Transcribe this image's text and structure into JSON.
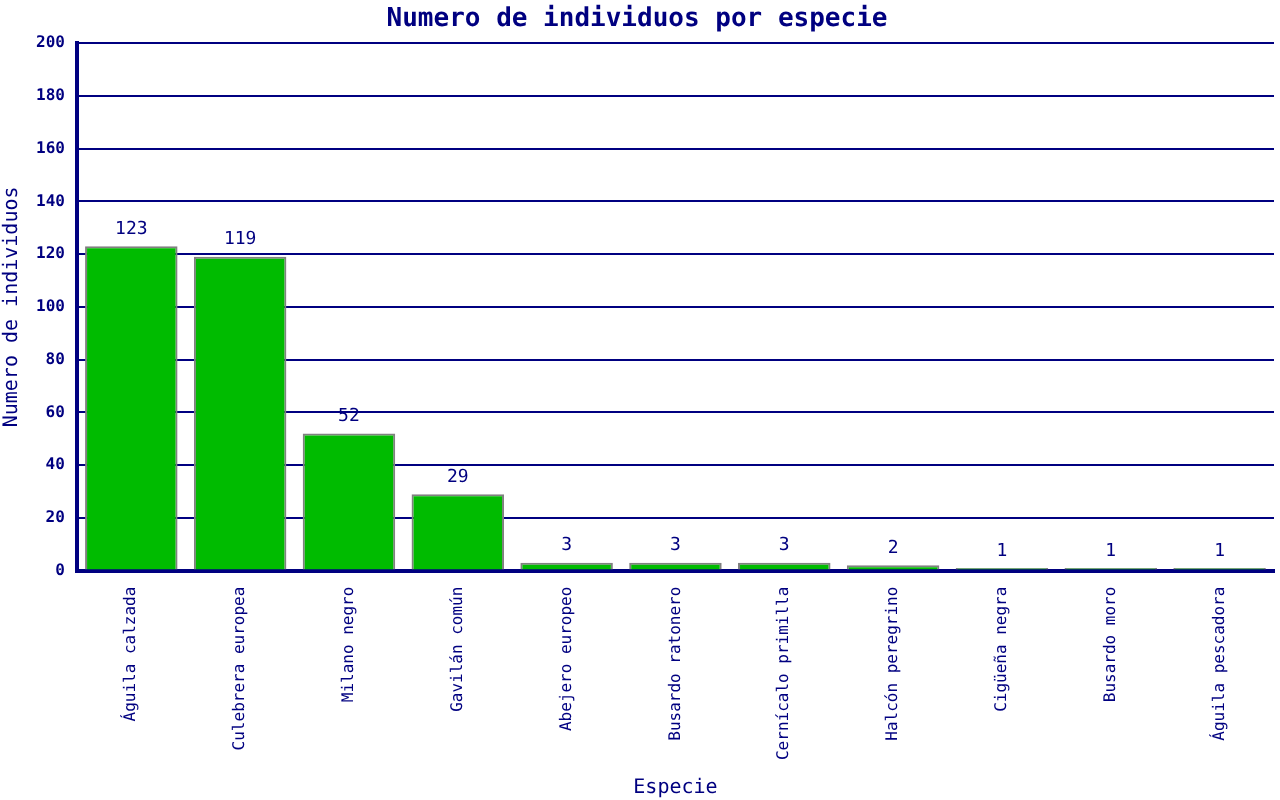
{
  "chart_data": {
    "type": "bar",
    "title": "Numero de individuos por especie",
    "xlabel": "Especie",
    "ylabel": "Numero de individuos",
    "categories": [
      "Águila calzada",
      "Culebrera europea",
      "Milano negro",
      "Gavilán común",
      "Abejero europeo",
      "Busardo ratonero",
      "Cernícalo primilla",
      "Halcón peregrino",
      "Cigüeña negra",
      "Busardo moro",
      "Águila pescadora"
    ],
    "values": [
      123,
      119,
      52,
      29,
      3,
      3,
      3,
      2,
      1,
      1,
      1
    ],
    "color": "#00bb00",
    "ylim": [
      0,
      200
    ],
    "yticks": [
      0,
      20,
      40,
      60,
      80,
      100,
      120,
      140,
      160,
      180,
      200
    ],
    "grid": "y",
    "legend": false,
    "data_labels": true
  }
}
